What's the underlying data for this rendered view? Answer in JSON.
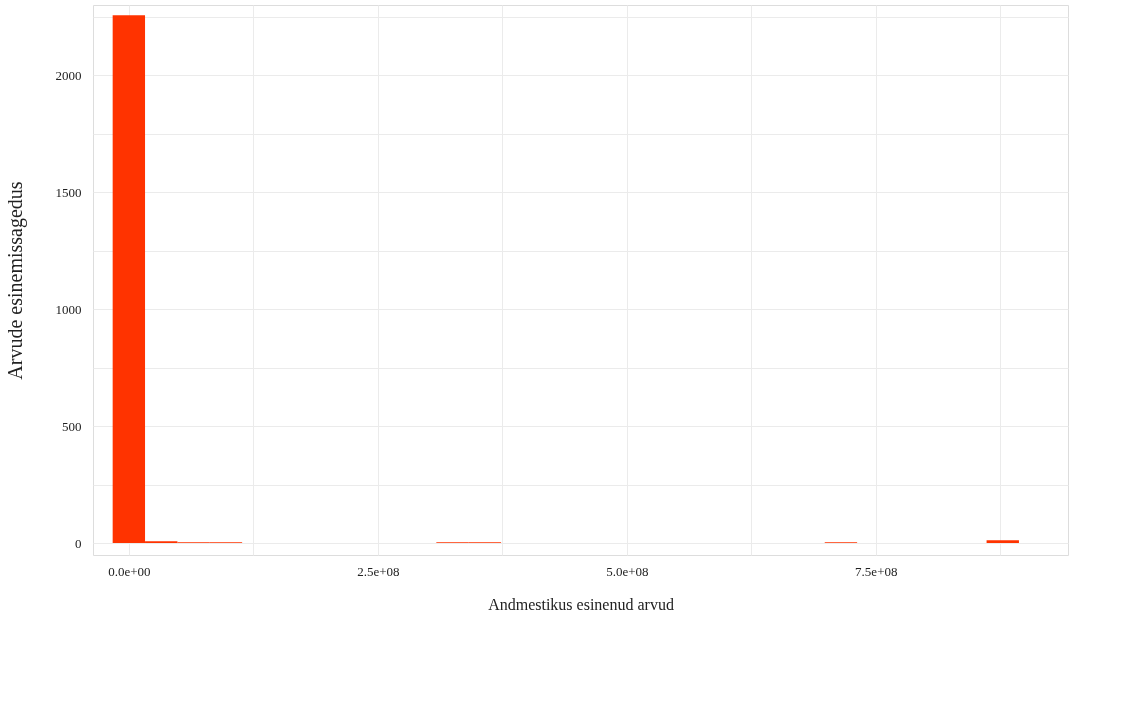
{
  "chart_data": {
    "type": "histogram",
    "xlabel": "Andmestikus esinenud arvud",
    "ylabel": "Arvude esinemissagedus",
    "bins": [
      -16250000,
      16250000,
      48750000,
      81250000,
      113750000,
      146250000,
      178750000,
      211250000,
      243750000,
      276250000,
      308750000,
      341250000,
      373750000,
      406250000,
      438750000,
      471250000,
      503750000,
      536250000,
      568750000,
      601250000,
      633750000,
      666250000,
      698750000,
      731250000,
      763750000,
      796250000,
      828750000,
      861250000,
      893750000
    ],
    "values": [
      2256,
      8,
      3,
      3,
      0,
      0,
      0,
      0,
      0,
      0,
      3,
      3,
      0,
      0,
      0,
      0,
      0,
      0,
      0,
      0,
      0,
      0,
      3,
      0,
      0,
      0,
      0,
      12
    ],
    "color": "#ff3300",
    "xlim": [
      -36000000,
      943000000
    ],
    "ylim": [
      -51,
      2300
    ],
    "xticks": [
      {
        "value": 0,
        "label": "0.0e+00"
      },
      {
        "value": 125000000,
        "label": null
      },
      {
        "value": 250000000,
        "label": "2.5e+08"
      },
      {
        "value": 375000000,
        "label": null
      },
      {
        "value": 500000000,
        "label": "5.0e+08"
      },
      {
        "value": 625000000,
        "label": null
      },
      {
        "value": 750000000,
        "label": "7.5e+08"
      },
      {
        "value": 875000000,
        "label": null
      }
    ],
    "yticks": [
      0,
      {
        "value": 250,
        "label": null
      },
      500,
      {
        "value": 750,
        "label": null
      },
      1000,
      {
        "value": 1250,
        "label": null
      },
      1500,
      {
        "value": 1750,
        "label": null
      },
      2000,
      {
        "value": 2250,
        "label": null
      }
    ],
    "grid": true
  }
}
